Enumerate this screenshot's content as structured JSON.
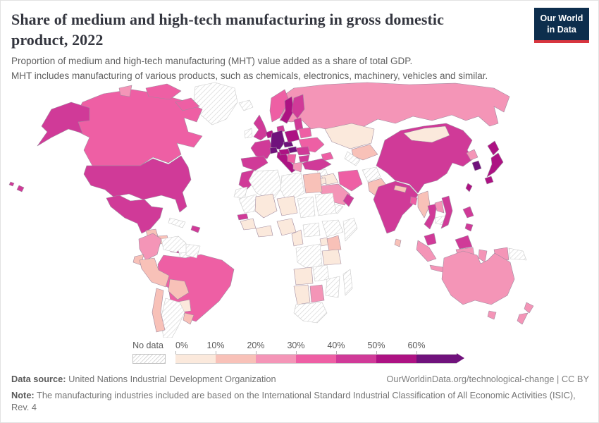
{
  "header": {
    "title": "Share of medium and high-tech manufacturing in gross domestic product, 2022",
    "subtitle_line1": "Proportion of medium and high-tech manufacturing (MHT) value added as a share of total GDP.",
    "subtitle_line2": "MHT includes manufacturing of various products, such as chemicals, electronics, machinery, vehicles and similar."
  },
  "logo": {
    "line1": "Our World",
    "line2": "in Data",
    "bg_color": "#0d2e4d",
    "accent_color": "#d8353f"
  },
  "legend": {
    "no_data_label": "No data",
    "tick_labels": [
      "0%",
      "10%",
      "20%",
      "30%",
      "40%",
      "50%",
      "60%"
    ]
  },
  "footer": {
    "datasource_label": "Data source:",
    "datasource_value": "United Nations Industrial Development Organization",
    "link_text": "OurWorldinData.org/technological-change | CC BY",
    "note_label": "Note:",
    "note_value": "The manufacturing industries included are based on the International Standard Industrial Classification of All Economic Activities (ISIC), Rev. 4"
  },
  "chart_data": {
    "type": "heatmap",
    "subtype": "choropleth-world-map",
    "title": "Share of medium and high-tech manufacturing in gross domestic product, 2022",
    "year": 2022,
    "unit": "% of GDP",
    "legend_position": "bottom",
    "bins": [
      "0-10",
      "10-20",
      "20-30",
      "30-40",
      "40-50",
      "50-60",
      "60-plus"
    ],
    "bin_colors": [
      "#fbe9dc",
      "#f8c1b8",
      "#f495b7",
      "#ee5fa4",
      "#d03a98",
      "#ad1283",
      "#70127c"
    ],
    "bucket_colors": {
      "0-10": "#fbe9dc",
      "10-20": "#f8c1b8",
      "20-30": "#f495b7",
      "30-40": "#ee5fa4",
      "40-50": "#d03a98",
      "50-60": "#ad1283",
      "60-plus": "#70127c",
      "no-data": "hatch"
    },
    "countries": {
      "greenland": "no-data",
      "canada": "30-40",
      "united-states": "40-50",
      "mexico": "40-50",
      "guatemala": "10-20",
      "nicaragua": "10-20",
      "costa-rica": "40-50",
      "panama": "no-data",
      "cuba": "no-data",
      "dominican-republic": "40-50",
      "colombia": "20-30",
      "venezuela": "no-data",
      "guyana-suriname": "no-data",
      "brazil": "30-40",
      "ecuador": "10-20",
      "peru": "10-20",
      "bolivia": "10-20",
      "paraguay": "0-10",
      "chile": "10-20",
      "argentina": "no-data",
      "uruguay": "10-20",
      "iceland": "no-data",
      "ireland": "no-data",
      "united-kingdom": "40-50",
      "norway": "30-40",
      "sweden": "50-60",
      "finland": "40-50",
      "denmark": "40-50",
      "benelux": "50-60",
      "germany": "60-plus",
      "france": "40-50",
      "spain": "40-50",
      "italy": "50-60",
      "switzerland": "60-plus",
      "austria": "50-60",
      "czechia": "60-plus",
      "poland": "50-60",
      "baltic-states": "40-50",
      "belarus": "30-40",
      "ukraine": "30-40",
      "hungary": "60-plus",
      "romania": "40-50",
      "balkans": "30-40",
      "bulgaria": "40-50",
      "greece": "20-30",
      "turkey": "40-50",
      "russia": "20-30",
      "kazakhstan": "0-10",
      "central-asia": "10-20",
      "turkmenistan": "no-data",
      "caucasus": "30-40",
      "syria": "no-data",
      "iraq": "0-10",
      "iran": "30-40",
      "israel": "60-plus",
      "jordan": "0-10",
      "saudi-arabia": "20-30",
      "yemen": "no-data",
      "oman": "40-50",
      "afghanistan": "no-data",
      "pakistan": "10-20",
      "india": "40-50",
      "nepal": "10-20",
      "bangladesh": "30-40",
      "sri-lanka": "10-20",
      "myanmar": "10-20",
      "thailand": "40-50",
      "laos": "20-30",
      "cambodia": "no-data",
      "vietnam": "40-50",
      "malaysia": "40-50",
      "indonesia": "20-30",
      "philippines": "40-50",
      "china": "40-50",
      "mongolia": "0-10",
      "north-korea": "20-30",
      "south-korea": "60-plus",
      "japan": "50-60",
      "taiwan": "50-60",
      "morocco": "40-50",
      "western-sahara": "no-data",
      "algeria": "no-data",
      "libya": "no-data",
      "egypt": "10-20",
      "mauritania": "no-data",
      "mali": "0-10",
      "niger": "0-10",
      "chad": "no-data",
      "sudan": "no-data",
      "senegal": "40-50",
      "guinea": "0-10",
      "west-africa-coast": "0-10",
      "nigeria": "0-10",
      "cameroon": "0-10",
      "central-african-republic": "no-data",
      "ethiopia": "no-data",
      "somalia": "no-data",
      "kenya": "10-20",
      "uganda": "0-10",
      "tanzania": "0-10",
      "dr-congo": "no-data",
      "angola": "0-10",
      "zambia": "no-data",
      "mozambique-zimbabwe": "no-data",
      "namibia": "0-10",
      "botswana": "20-30",
      "south-africa": "no-data",
      "madagascar": "no-data",
      "australia": "20-30",
      "new-zealand": "20-30",
      "papua-new-guinea": "no-data"
    }
  }
}
